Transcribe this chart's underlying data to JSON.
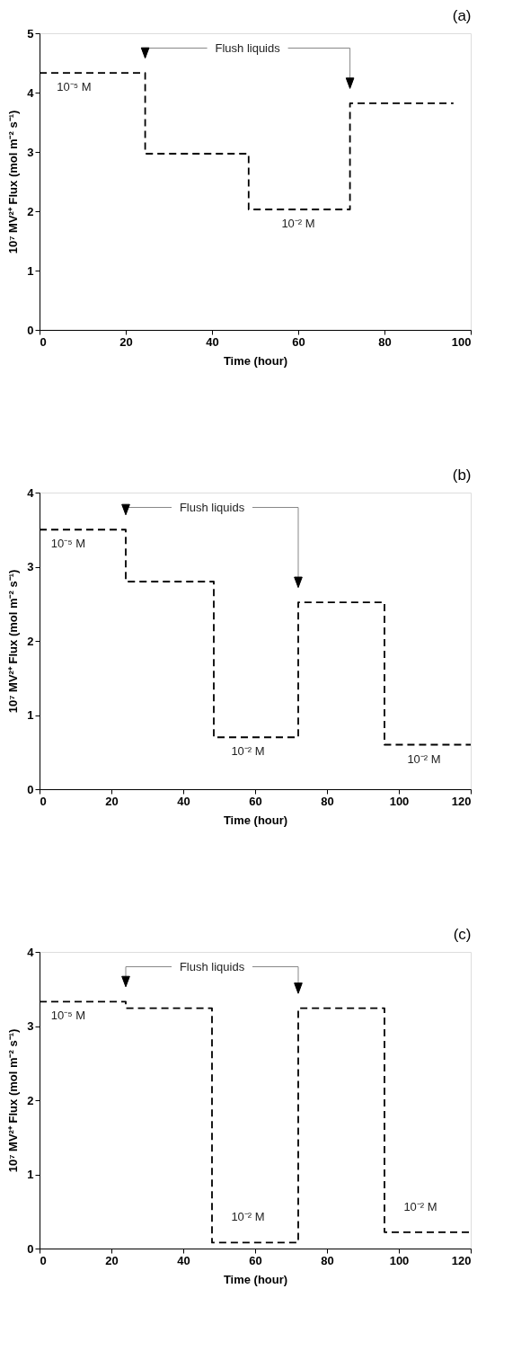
{
  "chart_data": [
    {
      "type": "step",
      "title": "(a)",
      "xlabel": "Time (hour)",
      "ylabel": "10⁷ MV²⁺ Flux (mol m⁻² s⁻¹)",
      "line_style": "dashed",
      "grid": false,
      "x": [
        0,
        24.5,
        48.5,
        72,
        96
      ],
      "series": [
        {
          "color": "#000000",
          "values": [
            4.33,
            2.97,
            2.03,
            3.82,
            3.82
          ]
        }
      ],
      "xlim": [
        0,
        100
      ],
      "xticks": [
        0,
        20,
        40,
        60,
        80,
        100
      ],
      "ylim": [
        0,
        5
      ],
      "yticks": [
        0,
        1,
        2,
        3,
        4,
        5
      ],
      "annotations": [
        "Flush liquids",
        {
          "text": "10⁻⁵ M",
          "x": 8,
          "y": 4.33
        },
        {
          "text": "10⁻² M",
          "x": 60,
          "y": 2.03
        }
      ]
    },
    {
      "type": "step",
      "title": "(b)",
      "xlabel": "Time (hour)",
      "ylabel": "10⁷ MV²⁺ Flux (mol m⁻² s⁻¹)",
      "line_style": "dashed",
      "grid": false,
      "x": [
        0,
        24,
        48.5,
        72,
        96,
        120
      ],
      "series": [
        {
          "color": "#000000",
          "values": [
            3.5,
            2.8,
            0.7,
            2.52,
            0.6,
            0.6
          ]
        }
      ],
      "xlim": [
        0,
        120
      ],
      "xticks": [
        0,
        20,
        40,
        60,
        80,
        100,
        120
      ],
      "ylim": [
        0,
        4
      ],
      "yticks": [
        0,
        1,
        2,
        3,
        4
      ],
      "annotations": [
        "Flush liquids",
        {
          "text": "10⁻⁵ M",
          "x": 8,
          "y": 3.5
        },
        {
          "text": "10⁻² M",
          "x": 58,
          "y": 0.7
        },
        {
          "text": "10⁻² M",
          "x": 107,
          "y": 0.6
        }
      ]
    },
    {
      "type": "step",
      "title": "(c)",
      "xlabel": "Time (hour)",
      "ylabel": "10⁷ MV²⁺ Flux (mol m⁻² s⁻¹)",
      "line_style": "dashed",
      "grid": false,
      "x": [
        0,
        24,
        48,
        72,
        96,
        120
      ],
      "series": [
        {
          "color": "#000000",
          "values": [
            3.33,
            3.24,
            0.08,
            3.24,
            0.22,
            0.22
          ]
        }
      ],
      "xlim": [
        0,
        120
      ],
      "xticks": [
        0,
        20,
        40,
        60,
        80,
        100,
        120
      ],
      "ylim": [
        0,
        4
      ],
      "yticks": [
        0,
        1,
        2,
        3,
        4
      ],
      "annotations": [
        "Flush liquids",
        {
          "text": "10⁻⁵ M",
          "x": 8,
          "y": 3.33
        },
        {
          "text": "10⁻² M",
          "x": 58,
          "y": 0.08
        },
        {
          "text": "10⁻² M",
          "x": 106,
          "y": 0.22
        }
      ]
    }
  ]
}
